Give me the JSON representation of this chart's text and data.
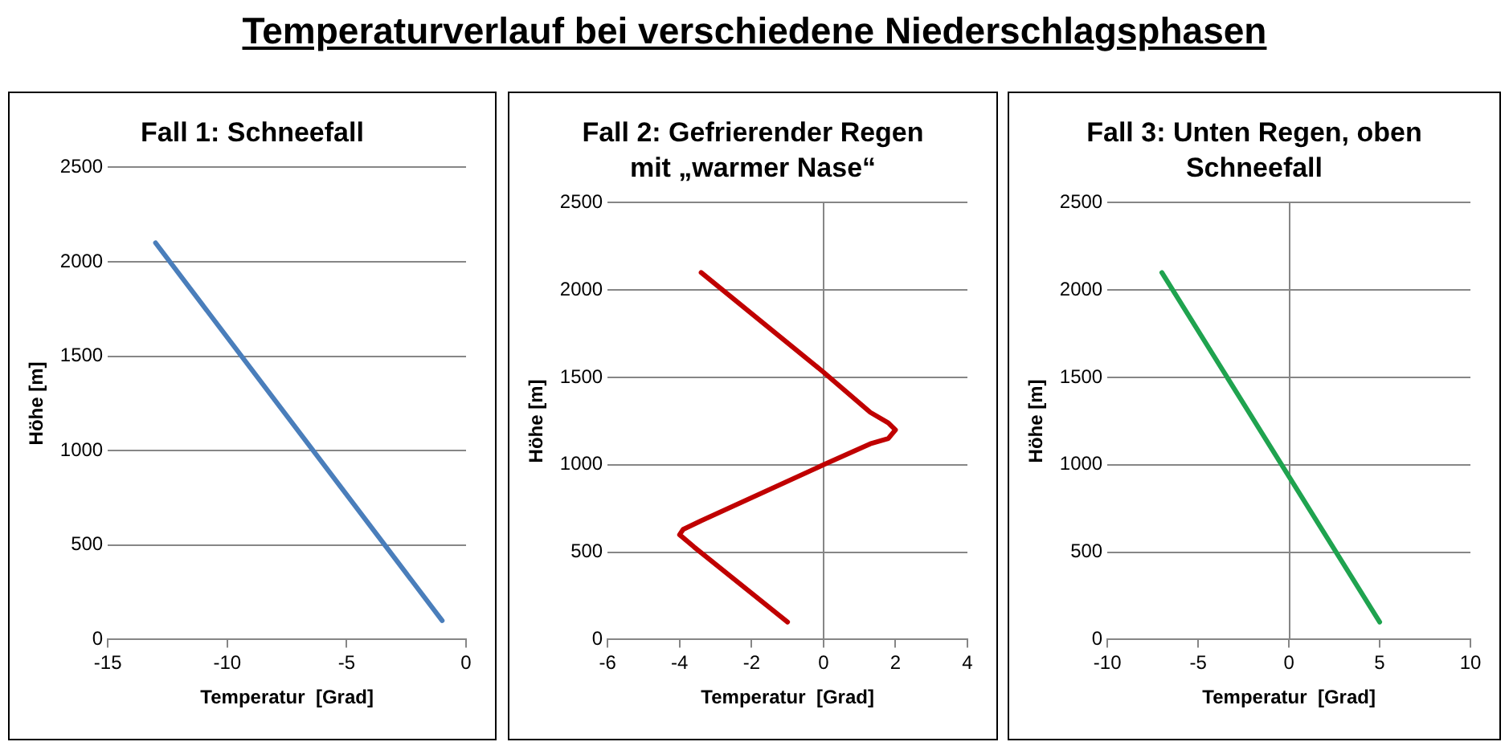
{
  "chart_data": [
    {
      "type": "line",
      "title": "Fall 1: Schneefall",
      "annotations": [
        "Temperaturverlauf bei verschiedene Niederschlagsphasen"
      ],
      "xlabel": "Temperatur  [Grad]",
      "ylabel": "Höhe [m]",
      "series": [
        {
          "color": "#4a7ebb",
          "x": [
            -13,
            -1
          ],
          "values": [
            2100,
            100
          ]
        }
      ],
      "xlim": [
        -15,
        0
      ],
      "xticks": [
        -15,
        -10,
        -5,
        0
      ],
      "ylim": [
        0,
        2500
      ],
      "yticks": [
        0,
        500,
        1000,
        1500,
        2000,
        2500
      ],
      "grid": "y",
      "legend": false,
      "marker": "none",
      "line_style": "solid"
    },
    {
      "type": "line",
      "title": "Fall 2: Gefrierender Regen mit „warmer Nase“",
      "xlabel": "Temperatur  [Grad]",
      "ylabel": "Höhe [m]",
      "series": [
        {
          "color": "#c00000",
          "x": [
            -3.4,
            0,
            1.3,
            1.8,
            2,
            1.8,
            1.3,
            0,
            -3.4,
            -3.9,
            -4,
            -3.6,
            -1
          ],
          "values": [
            2100,
            1530,
            1300,
            1240,
            1200,
            1150,
            1120,
            1000,
            680,
            630,
            600,
            530,
            100
          ]
        }
      ],
      "xlim": [
        -6,
        4
      ],
      "xticks": [
        -6,
        -4,
        -2,
        0,
        2,
        4
      ],
      "ylim": [
        0,
        2500
      ],
      "yticks": [
        0,
        500,
        1000,
        1500,
        2000,
        2500
      ],
      "grid": "y",
      "legend": false,
      "marker": "none",
      "line_style": "solid",
      "ref_lines": [
        {
          "axis": "x",
          "value": 0,
          "color": "#868686"
        }
      ]
    },
    {
      "type": "line",
      "title": "Fall 3: Unten Regen, oben Schneefall",
      "xlabel": "Temperatur  [Grad]",
      "ylabel": "Höhe [m]",
      "series": [
        {
          "color": "#1fa34f",
          "x": [
            -7,
            5
          ],
          "values": [
            2100,
            100
          ]
        }
      ],
      "xlim": [
        -10,
        10
      ],
      "xticks": [
        -10,
        -5,
        0,
        5,
        10
      ],
      "ylim": [
        0,
        2500
      ],
      "yticks": [
        0,
        500,
        1000,
        1500,
        2000,
        2500
      ],
      "grid": "y",
      "legend": false,
      "marker": "none",
      "line_style": "solid",
      "ref_lines": [
        {
          "axis": "x",
          "value": 0,
          "color": "#868686"
        }
      ]
    }
  ]
}
